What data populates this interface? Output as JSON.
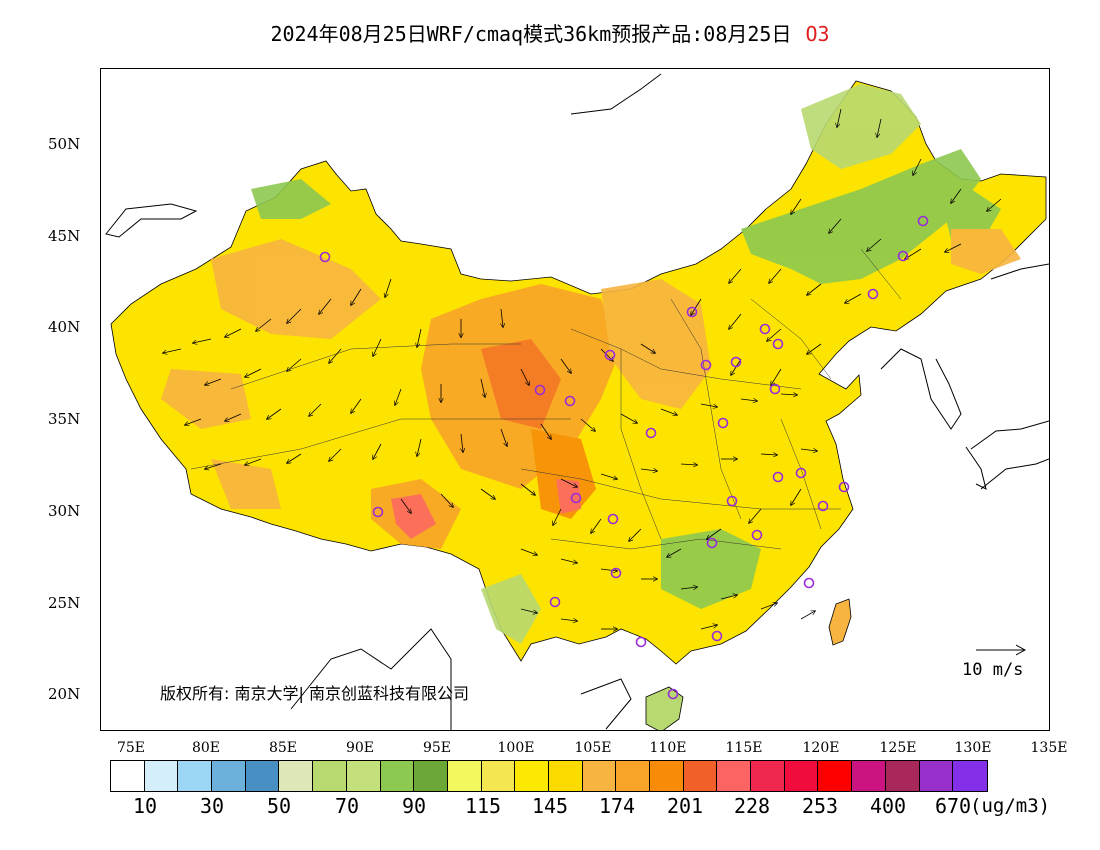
{
  "title": {
    "text": "2024年08月25日WRF/cmaq模式36km预报产品:08月25日",
    "pollutant": "O3"
  },
  "map": {
    "lat_labels": [
      "50N",
      "45N",
      "40N",
      "35N",
      "30N",
      "25N",
      "20N"
    ],
    "lon_labels": [
      "75E",
      "80E",
      "85E",
      "90E",
      "95E",
      "100E",
      "105E",
      "110E",
      "115E",
      "120E",
      "125E",
      "130E",
      "135E"
    ],
    "copyright": "版权所有: 南京大学| 南京创蓝科技有限公司",
    "wind_reference": "10 m/s",
    "colors": {
      "land_base": "#fde400",
      "orange": "#f7a028",
      "deep_orange": "#f08030",
      "red_pink": "#f05a5a",
      "green": "#8dc850",
      "light_green": "#b8d870",
      "station_marker": "#9a2bd8"
    }
  },
  "colorbar": {
    "colors": [
      "#ffffff",
      "#d4eefc",
      "#9cd6f4",
      "#6cb0dc",
      "#4890c4",
      "#dce8b8",
      "#b8d870",
      "#c4e07c",
      "#8dc850",
      "#6ca838",
      "#f4f860",
      "#f4e650",
      "#fce800",
      "#fcdc00",
      "#f8b440",
      "#f8a428",
      "#f88c08",
      "#f06028",
      "#fc6464",
      "#f02850",
      "#f00c3c",
      "#fc0000",
      "#cc1480",
      "#a8285c",
      "#9830cc",
      "#8430e8"
    ],
    "labels": [
      "10",
      "30",
      "50",
      "70",
      "90",
      "115",
      "145",
      "174",
      "201",
      "228",
      "253",
      "400",
      "670"
    ],
    "units": "(ug/m3)"
  }
}
